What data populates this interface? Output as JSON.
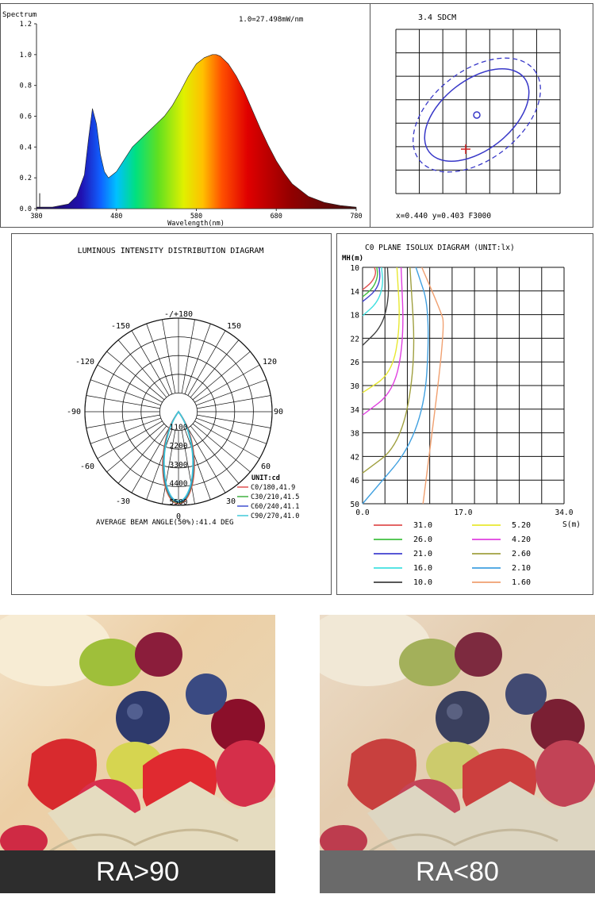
{
  "spectrum": {
    "ylabel": "Spectrum",
    "note": "1.0=27.498mW/nm",
    "xlabel": "Wavelength(nm)",
    "yticks": [
      "1.2",
      "1.0",
      "0.8",
      "0.6",
      "0.4",
      "0.2",
      "0.0"
    ],
    "xticks": [
      "380",
      "480",
      "580",
      "680",
      "780"
    ]
  },
  "sdcm": {
    "title": "3.4 SDCM",
    "footer": "x=0.440 y=0.403 F3000"
  },
  "polar": {
    "title": "LUMINOUS INTENSITY DISTRIBUTION DIAGRAM",
    "angle_labels": {
      "top": "-/+180",
      "m150": "-150",
      "p150": "150",
      "m120": "-120",
      "p120": "120",
      "m90": "-90",
      "p90": "90",
      "m60": "-60",
      "p60": "60",
      "m30": "-30",
      "p30": "30",
      "zero": "0"
    },
    "radial_labels": [
      "1100",
      "2200",
      "3300",
      "4400",
      "5500"
    ],
    "unit": "UNIT:cd",
    "legend": [
      {
        "label": "C0/180,41.9",
        "color": "#e05050"
      },
      {
        "label": "C30/210,41.5",
        "color": "#40b040"
      },
      {
        "label": "C60/240,41.1",
        "color": "#4050d0"
      },
      {
        "label": "C90/270,41.0",
        "color": "#40c8d8"
      }
    ],
    "footer": "AVERAGE BEAM ANGLE(50%):41.4 DEG"
  },
  "isolux": {
    "title": "C0 PLANE ISOLUX DIAGRAM (UNIT:lx)",
    "ylabel": "MH(m)",
    "yticks": [
      "10",
      "14",
      "18",
      "22",
      "26",
      "30",
      "34",
      "38",
      "42",
      "46",
      "50"
    ],
    "xticks": [
      "0.0",
      "17.0",
      "34.0"
    ],
    "xlabel": "S(m)",
    "legend": [
      {
        "label": "31.0",
        "color": "#e05050"
      },
      {
        "label": "5.20",
        "color": "#e8e830"
      },
      {
        "label": "26.0",
        "color": "#40c040"
      },
      {
        "label": "4.20",
        "color": "#e040e0"
      },
      {
        "label": "21.0",
        "color": "#4040d0"
      },
      {
        "label": "2.60",
        "color": "#a0a040"
      },
      {
        "label": "16.0",
        "color": "#40e0e0"
      },
      {
        "label": "2.10",
        "color": "#40a0e0"
      },
      {
        "label": "10.0",
        "color": "#404040"
      },
      {
        "label": "1.60",
        "color": "#f0a070"
      }
    ]
  },
  "comparison": {
    "left_caption": "RA>90",
    "right_caption": "RA<80"
  },
  "chart_data": [
    {
      "type": "area",
      "title": "Spectrum",
      "xlabel": "Wavelength(nm)",
      "xlim": [
        380,
        780
      ],
      "ylim": [
        0,
        1.2
      ],
      "x": [
        380,
        400,
        420,
        430,
        440,
        445,
        450,
        455,
        460,
        465,
        470,
        480,
        490,
        500,
        510,
        520,
        530,
        540,
        550,
        560,
        570,
        580,
        590,
        600,
        605,
        610,
        620,
        630,
        640,
        650,
        660,
        670,
        680,
        690,
        700,
        720,
        740,
        760,
        780
      ],
      "y": [
        0.01,
        0.01,
        0.03,
        0.08,
        0.22,
        0.45,
        0.65,
        0.55,
        0.35,
        0.24,
        0.2,
        0.24,
        0.32,
        0.4,
        0.45,
        0.5,
        0.55,
        0.6,
        0.67,
        0.76,
        0.86,
        0.94,
        0.98,
        1.0,
        1.0,
        0.99,
        0.94,
        0.86,
        0.76,
        0.64,
        0.52,
        0.41,
        0.31,
        0.23,
        0.16,
        0.08,
        0.04,
        0.02,
        0.01
      ]
    },
    {
      "type": "line",
      "title": "C0 PLANE ISOLUX DIAGRAM (UNIT:lx)",
      "xlabel": "S(m)",
      "ylabel": "MH(m)",
      "xlim": [
        0,
        34
      ],
      "ylim": [
        10,
        50
      ],
      "series": [
        {
          "name": "31.0",
          "x": [
            2.0,
            2.3,
            1.6,
            0.0
          ],
          "y": [
            10,
            11,
            12.5,
            13.8
          ]
        },
        {
          "name": "26.0",
          "x": [
            2.4,
            2.6,
            1.8,
            0.0
          ],
          "y": [
            10,
            11.5,
            13.5,
            15.0
          ]
        },
        {
          "name": "21.0",
          "x": [
            2.8,
            3.0,
            2.2,
            0.0
          ],
          "y": [
            10,
            12,
            14,
            15.8
          ]
        },
        {
          "name": "16.0",
          "x": [
            3.2,
            3.5,
            2.5,
            0.0
          ],
          "y": [
            10,
            13,
            16,
            18.2
          ]
        },
        {
          "name": "10.0",
          "x": [
            4.2,
            4.5,
            3.3,
            0.0
          ],
          "y": [
            10,
            15,
            20,
            23.2
          ]
        },
        {
          "name": "5.20",
          "x": [
            5.8,
            6.4,
            4.9,
            0.0
          ],
          "y": [
            10,
            20,
            28,
            31.2
          ]
        },
        {
          "name": "4.20",
          "x": [
            6.5,
            7.0,
            5.3,
            0.0
          ],
          "y": [
            10,
            22,
            31,
            35.0
          ]
        },
        {
          "name": "2.60",
          "x": [
            8.0,
            9.0,
            6.4,
            0.0
          ],
          "y": [
            10,
            26,
            40,
            44.8
          ]
        },
        {
          "name": "2.10",
          "x": [
            9.0,
            11.5,
            10.2,
            0.0
          ],
          "y": [
            10,
            17.5,
            38,
            50
          ]
        },
        {
          "name": "1.60",
          "x": [
            10.0,
            13.0,
            14.0,
            10.2
          ],
          "y": [
            10,
            17,
            20,
            50
          ]
        }
      ]
    }
  ]
}
